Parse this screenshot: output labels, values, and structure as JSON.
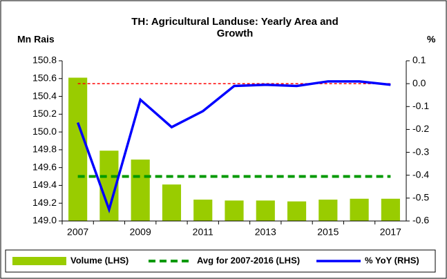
{
  "chart_data": {
    "type": "bar",
    "title": "TH: Agricultural Landuse: Yearly Area and Growth",
    "y_axis_label": "Mn Rais",
    "y2_axis_label": "%",
    "categories": [
      "2007",
      null,
      "2009",
      null,
      "2011",
      null,
      "2013",
      null,
      "2015",
      null,
      "2017"
    ],
    "series": [
      {
        "name": "Volume (LHS)",
        "type": "bar",
        "color": "#99cc00",
        "values": [
          150.61,
          149.79,
          149.69,
          149.41,
          149.24,
          149.23,
          149.23,
          149.22,
          149.24,
          149.25,
          149.25
        ]
      },
      {
        "name": "Avg for 2007-2016 (LHS)",
        "type": "line",
        "dashed": true,
        "color": "#009900",
        "values": [
          149.5,
          149.5,
          149.5,
          149.5,
          149.5,
          149.5,
          149.5,
          149.5,
          149.5,
          149.5,
          149.5
        ]
      },
      {
        "name": "% YoY (RHS)",
        "type": "line",
        "axis": "y2",
        "color": "#0000ff",
        "values": [
          -0.17,
          -0.55,
          -0.07,
          -0.19,
          -0.12,
          -0.01,
          -0.005,
          -0.01,
          0.01,
          0.01,
          -0.005
        ]
      }
    ],
    "ylim": [
      149.0,
      150.8
    ],
    "yticks": [
      {
        "value": 149.0,
        "label": "149.0"
      },
      {
        "value": 149.2,
        "label": "149.2"
      },
      {
        "value": 149.4,
        "label": "149.4"
      },
      {
        "value": 149.6,
        "label": "149.6"
      },
      {
        "value": 149.8,
        "label": "149.8"
      },
      {
        "value": 150.0,
        "label": "150.0"
      },
      {
        "value": 150.2,
        "label": "150.2"
      },
      {
        "value": 150.4,
        "label": "150.4"
      },
      {
        "value": 150.6,
        "label": "150.6"
      },
      {
        "value": 150.8,
        "label": "150.8"
      }
    ],
    "y2lim": [
      -0.6,
      0.1
    ],
    "y2ticks": [
      {
        "value": -0.6,
        "label": "-0.6"
      },
      {
        "value": -0.5,
        "label": "-0.5"
      },
      {
        "value": -0.4,
        "label": "-0.4"
      },
      {
        "value": -0.3,
        "label": "-0.3"
      },
      {
        "value": -0.2,
        "label": "-0.2"
      },
      {
        "value": -0.1,
        "label": "-0.1"
      },
      {
        "value": 0,
        "label": "0.0"
      },
      {
        "value": 0.1,
        "label": "0.1"
      }
    ],
    "y2_zero_line": true,
    "y2_zero_line_color": "#ff0000",
    "grid": false,
    "legend": "bottom"
  }
}
